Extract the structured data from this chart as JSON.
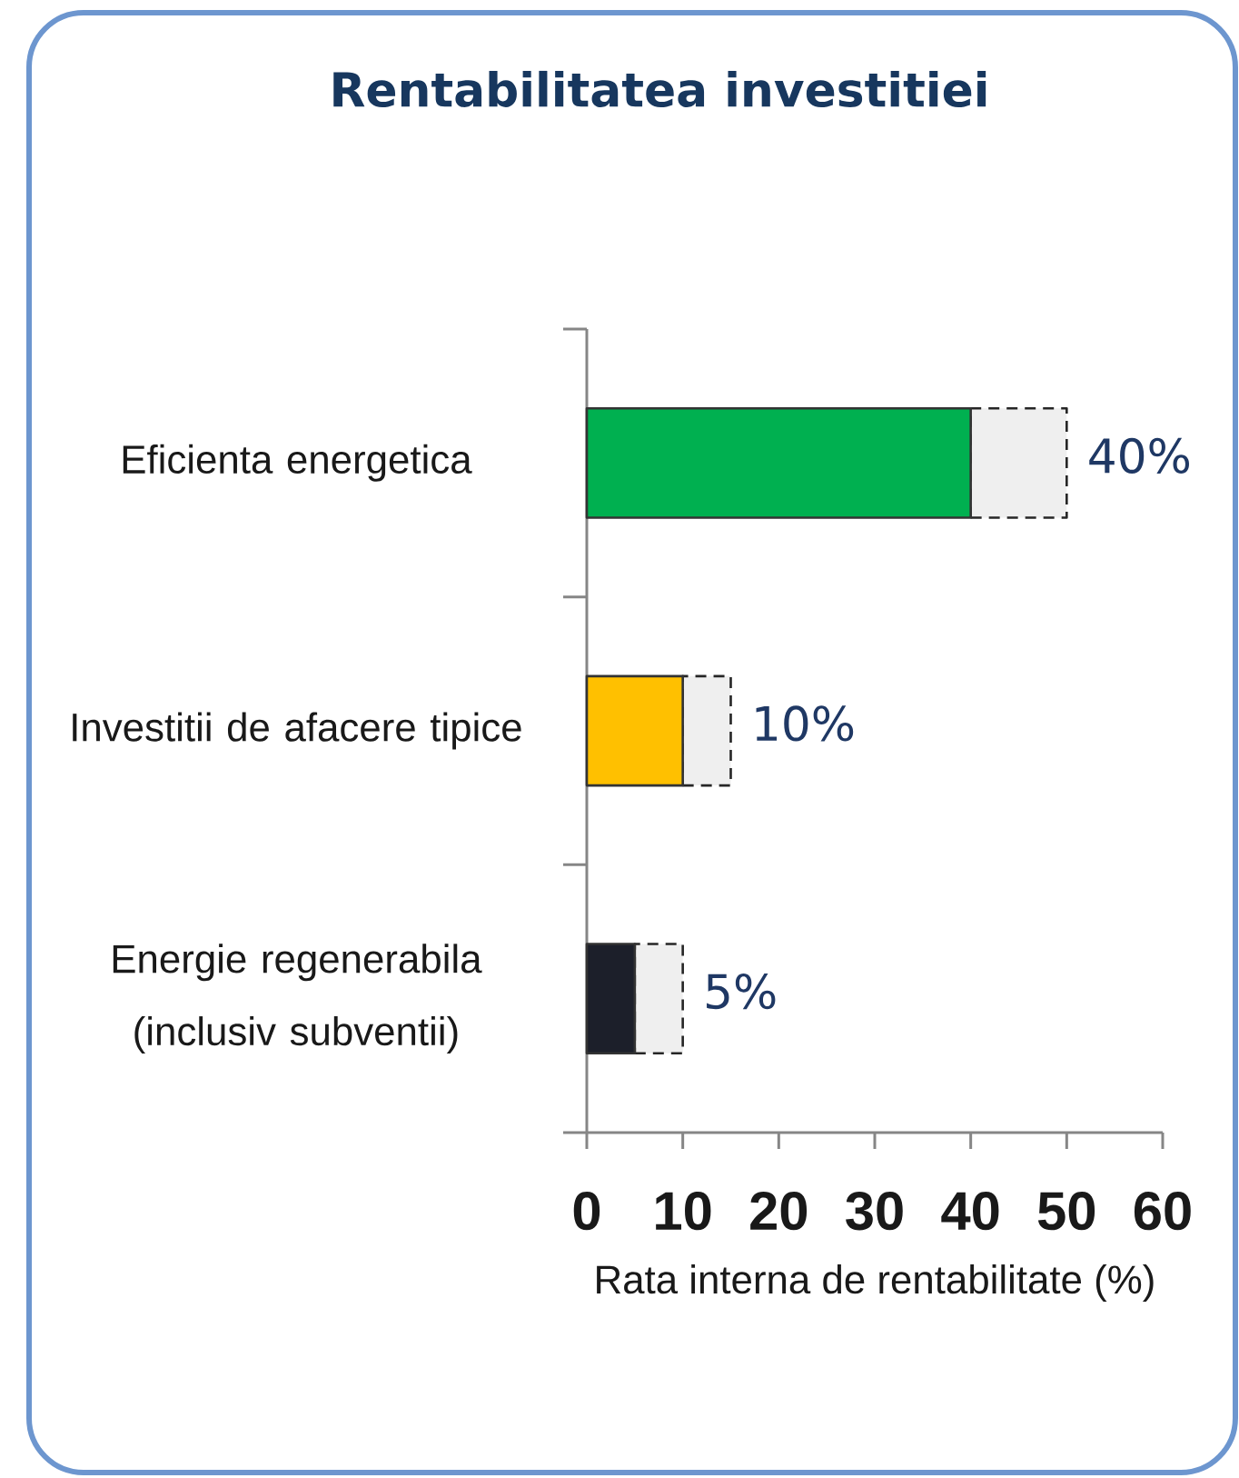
{
  "chart_data": {
    "type": "bar",
    "orientation": "horizontal",
    "stacked": true,
    "title": "Rentabilitatea investitiei",
    "xlabel": "Rata interna de rentabilitate (%)",
    "categories": [
      "Eficienta energetica",
      "Investitii de afacere tipice",
      "Energie regenerabila (inclusiv subventii)"
    ],
    "series": [
      {
        "colors": [
          "#00b050",
          "#ffc000",
          "#1c1f2a"
        ],
        "values": [
          40,
          10,
          5
        ],
        "value_labels": [
          "40%",
          "10%",
          "5%"
        ]
      },
      {
        "color": "#efefef",
        "line_style": "dashed",
        "values": [
          10,
          5,
          5
        ]
      }
    ],
    "xlim": [
      0,
      60
    ],
    "xticks": [
      0,
      10,
      20,
      30,
      40,
      50,
      60
    ]
  }
}
